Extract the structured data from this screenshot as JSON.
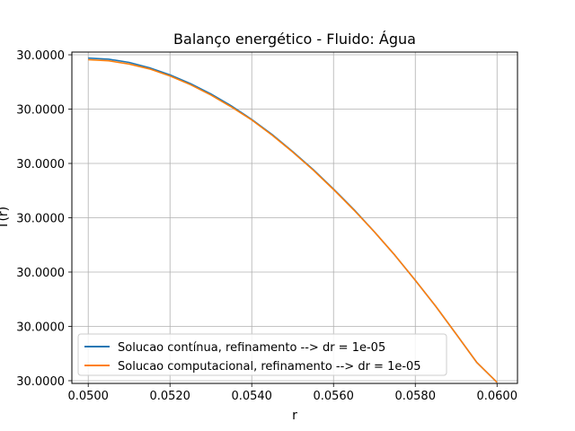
{
  "chart_data": {
    "type": "line",
    "title": "Balanço energético - Fluido: Água",
    "xlabel": "r",
    "ylabel": "T(r)",
    "xlim": [
      0.0496,
      0.0605
    ],
    "ylim": [
      -0.05,
      6.05
    ],
    "x_ticks": [
      0.05,
      0.052,
      0.054,
      0.056,
      0.058,
      0.06
    ],
    "x_tick_labels": [
      "0.0500",
      "0.0520",
      "0.0540",
      "0.0560",
      "0.0580",
      "0.0600"
    ],
    "y_ticks": [
      0,
      1,
      2,
      3,
      4,
      5,
      6
    ],
    "y_tick_labels": [
      "30.0000",
      "30.0000",
      "30.0000",
      "30.0000",
      "30.0000",
      "30.0000",
      "30.0000"
    ],
    "grid": true,
    "legend_position": "lower-left",
    "series": [
      {
        "name": "Solucao contínua, refinamento --> dr = 1e-05",
        "color": "#1f77b4",
        "x": [
          0.05,
          0.0505,
          0.051,
          0.0515,
          0.052,
          0.0525,
          0.053,
          0.0535,
          0.054,
          0.0545,
          0.055,
          0.0555,
          0.056,
          0.0565,
          0.057,
          0.0575,
          0.058,
          0.0585,
          0.059,
          0.0595,
          0.06
        ],
        "y": [
          5.94,
          5.92,
          5.86,
          5.76,
          5.63,
          5.47,
          5.28,
          5.06,
          4.81,
          4.53,
          4.22,
          3.89,
          3.53,
          3.15,
          2.74,
          2.31,
          1.85,
          1.37,
          0.86,
          0.34,
          -0.03
        ]
      },
      {
        "name": "Solucao computacional, refinamento --> dr = 1e-05",
        "color": "#ff7f0e",
        "x": [
          0.05,
          0.0505,
          0.051,
          0.0515,
          0.052,
          0.0525,
          0.053,
          0.0535,
          0.054,
          0.0545,
          0.055,
          0.0555,
          0.056,
          0.0565,
          0.057,
          0.0575,
          0.058,
          0.0585,
          0.059,
          0.0595,
          0.06
        ],
        "y": [
          5.91,
          5.89,
          5.83,
          5.74,
          5.61,
          5.45,
          5.26,
          5.04,
          4.8,
          4.52,
          4.21,
          3.88,
          3.52,
          3.14,
          2.74,
          2.31,
          1.85,
          1.37,
          0.86,
          0.34,
          -0.03
        ]
      }
    ]
  }
}
